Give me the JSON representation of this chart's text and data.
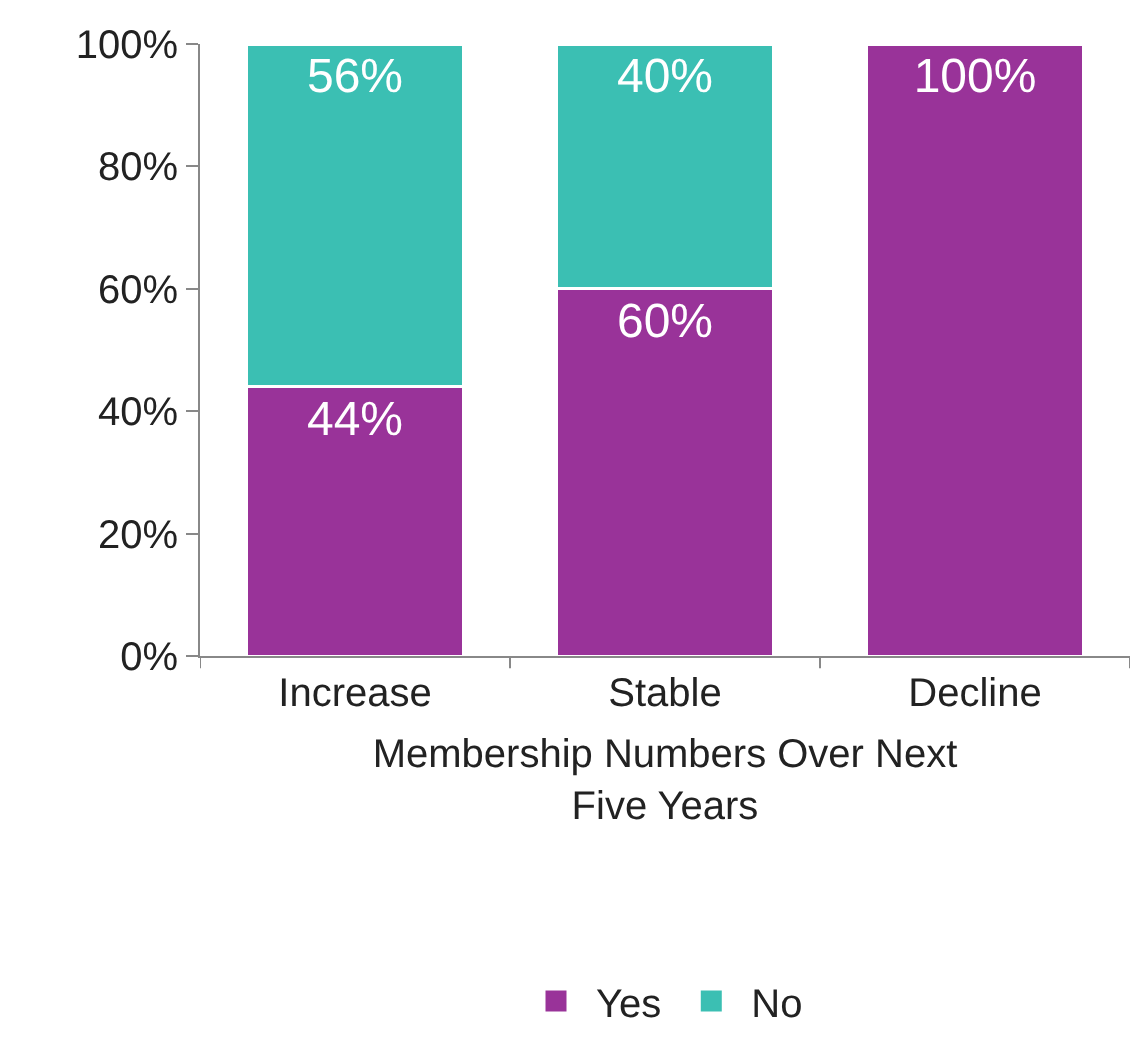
{
  "chart_data": {
    "type": "bar",
    "stacked": true,
    "xlabel": "Membership Numbers Over Next\nFive Years",
    "categories": [
      "Increase",
      "Stable",
      "Decline"
    ],
    "series": [
      {
        "name": "Yes",
        "color": "#993399",
        "values": [
          44,
          60,
          100
        ],
        "value_labels": [
          "44%",
          "60%",
          "100%"
        ]
      },
      {
        "name": "No",
        "color": "#3bbfb3",
        "values": [
          56,
          40,
          0
        ],
        "value_labels": [
          "56%",
          "40%",
          null
        ]
      }
    ],
    "ylim": [
      0,
      100
    ],
    "yticks": [
      {
        "value": 0,
        "label": "0%"
      },
      {
        "value": 20,
        "label": "20%"
      },
      {
        "value": 40,
        "label": "40%"
      },
      {
        "value": 60,
        "label": "60%"
      },
      {
        "value": 80,
        "label": "80%"
      },
      {
        "value": 100,
        "label": "100%"
      }
    ],
    "grid": false,
    "legend": "bottom"
  }
}
